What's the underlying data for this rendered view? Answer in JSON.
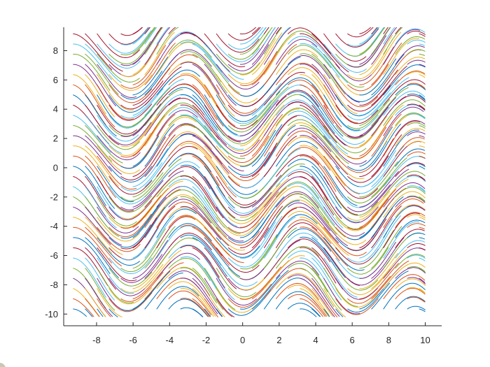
{
  "chart_data": {
    "type": "line",
    "title": "",
    "xlabel": "",
    "ylabel": "",
    "xlim": [
      -9.8,
      10.9
    ],
    "ylim": [
      -10.8,
      9.6
    ],
    "x_ticks": [
      "-8",
      "-6",
      "-4",
      "-2",
      "0",
      "2",
      "4",
      "6",
      "8",
      "10"
    ],
    "y_ticks": [
      "-10",
      "-8",
      "-6",
      "-4",
      "-2",
      "0",
      "2",
      "4",
      "6",
      "8"
    ],
    "x_tick_values": [
      -8,
      -6,
      -4,
      -2,
      0,
      2,
      4,
      6,
      8,
      10
    ],
    "y_tick_values": [
      -10,
      -8,
      -6,
      -4,
      -2,
      0,
      2,
      4,
      6,
      8
    ],
    "field_domain": {
      "x": [
        -9.6,
        10
      ],
      "y": [
        -10,
        9.5
      ]
    },
    "grid": false,
    "legend": "none",
    "series_colors": [
      "#0072BD",
      "#D95319",
      "#EDB120",
      "#7E2F8E",
      "#77AC30",
      "#4DBEEE",
      "#A2142F"
    ]
  }
}
